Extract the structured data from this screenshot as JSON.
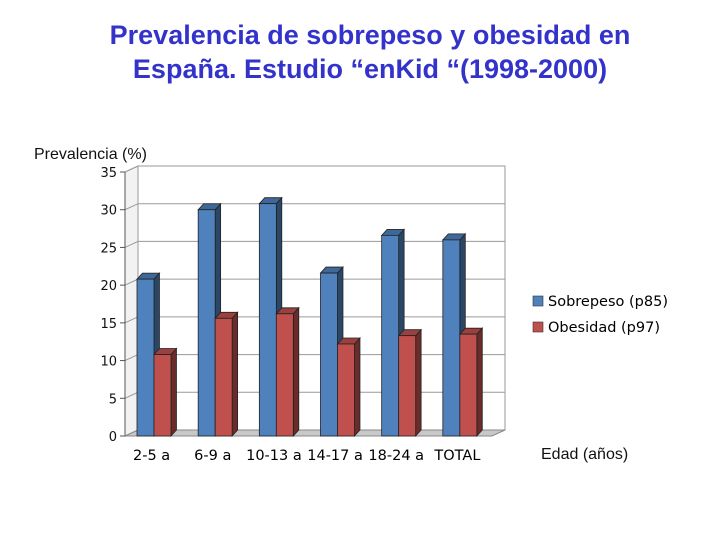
{
  "chart_data": {
    "type": "bar",
    "title": [
      "Prevalencia de sobrepeso y obesidad en",
      "España. Estudio “enKid “(1998-2000)"
    ],
    "ylabel": "Prevalencia (%)",
    "xlabel": "Edad (años)",
    "categories": [
      "2-5 a",
      "6-9 a",
      "10-13 a",
      "14-17 a",
      "18-24 a",
      "TOTAL"
    ],
    "series": [
      {
        "name": "Sobrepeso (p85)",
        "values": [
          20.8,
          30.0,
          30.8,
          21.6,
          26.6,
          26.0
        ],
        "color": "#4f81bd"
      },
      {
        "name": "Obesidad (p97)",
        "values": [
          10.8,
          15.6,
          16.2,
          12.2,
          13.3,
          13.5
        ],
        "color": "#c0504d"
      }
    ],
    "yticks": [
      "0",
      "5",
      "10",
      "15",
      "20",
      "25",
      "30",
      "35"
    ],
    "ylim": [
      0,
      35
    ],
    "grid": true,
    "legend_position": "right"
  }
}
